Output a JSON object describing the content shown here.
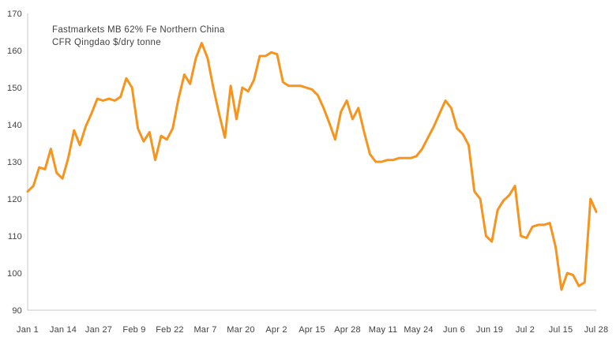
{
  "chart_data": {
    "type": "line",
    "title": "Fastmarkets MB 62% Fe Northern China CFR Qingdao $/dry tonne",
    "title_line1": "Fastmarkets MB 62% Fe Northern China",
    "title_line2": "CFR Qingdao $/dry tonne",
    "xlabel": "",
    "ylabel": "",
    "legend": "none",
    "grid": false,
    "ylim": [
      90,
      170
    ],
    "y_ticks": [
      170,
      160,
      150,
      140,
      130,
      120,
      110,
      100,
      90
    ],
    "x_tick_labels": [
      "Jan 1",
      "Jan 14",
      "Jan 27",
      "Feb 9",
      "Feb 22",
      "Mar 7",
      "Mar 20",
      "Apr 2",
      "Apr 15",
      "Apr 28",
      "May 11",
      "May 24",
      "Jun 6",
      "Jun 19",
      "Jul 2",
      "Jul 15",
      "Jul 28"
    ],
    "values": [
      122,
      123.5,
      128.5,
      128,
      133.5,
      127,
      125.5,
      131,
      138.5,
      134.5,
      139.5,
      143,
      147,
      146.5,
      147,
      146.5,
      147.5,
      152.5,
      150,
      139,
      135.5,
      138,
      130.5,
      137,
      136,
      139,
      147,
      153.5,
      151,
      158,
      162,
      158,
      150,
      143,
      136.5,
      150.5,
      141.5,
      150,
      149,
      152,
      158.5,
      158.5,
      159.5,
      159,
      151.5,
      150.5,
      150.5,
      150.5,
      150,
      149.5,
      148,
      144.5,
      140.5,
      136,
      143.5,
      146.5,
      141.5,
      144.5,
      138,
      132,
      130,
      130,
      130.5,
      130.5,
      131,
      131,
      131,
      131.5,
      133.5,
      136.5,
      139.5,
      143,
      146.5,
      144.5,
      139,
      137.5,
      134.5,
      122,
      120,
      110,
      108.5,
      117,
      119.5,
      121,
      123.5,
      110,
      109.5,
      112.5,
      113,
      113,
      113.5,
      107,
      95.5,
      100,
      99.5,
      96.5,
      97.5,
      120,
      116.5
    ],
    "line_color": "#F7941D",
    "axis_color": "#C9CACB",
    "text_color": "#414042"
  }
}
